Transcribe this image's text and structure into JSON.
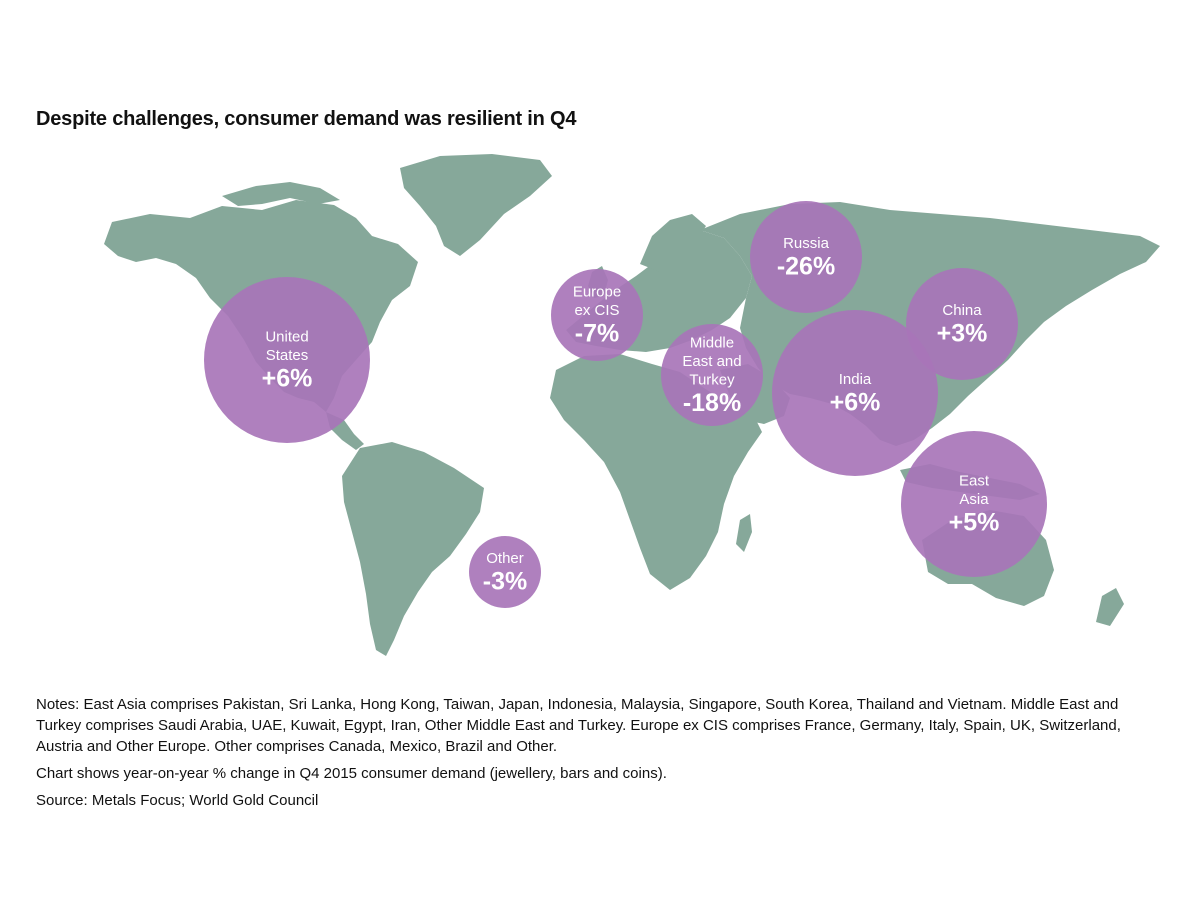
{
  "title": "Despite challenges, consumer demand was resilient in Q4",
  "colors": {
    "land": "#86a89a",
    "bubble": "#a875b8",
    "label": "#ffffff"
  },
  "regions": [
    {
      "id": "united-states",
      "name_lines": [
        "United",
        "States"
      ],
      "value": "+6%"
    },
    {
      "id": "europe-ex-cis",
      "name_lines": [
        "Europe",
        "ex CIS"
      ],
      "value": "-7%"
    },
    {
      "id": "russia",
      "name_lines": [
        "Russia"
      ],
      "value": "-26%"
    },
    {
      "id": "middle-east-turkey",
      "name_lines": [
        "Middle",
        "East and",
        "Turkey"
      ],
      "value": "-18%"
    },
    {
      "id": "china",
      "name_lines": [
        "China"
      ],
      "value": "+3%"
    },
    {
      "id": "india",
      "name_lines": [
        "India"
      ],
      "value": "+6%"
    },
    {
      "id": "east-asia",
      "name_lines": [
        "East",
        "Asia"
      ],
      "value": "+5%"
    },
    {
      "id": "other",
      "name_lines": [
        "Other"
      ],
      "value": "-3%"
    }
  ],
  "notes": {
    "definitions": "Notes: East Asia comprises Pakistan, Sri Lanka, Hong Kong, Taiwan, Japan, Indonesia, Malaysia, Singapore, South Korea, Thailand and Vietnam. Middle East and Turkey comprises Saudi Arabia, UAE, Kuwait, Egypt, Iran, Other Middle East and Turkey. Europe ex CIS comprises France, Germany, Italy, Spain, UK, Switzerland, Austria and Other Europe. Other comprises Canada, Mexico, Brazil and Other.",
    "chart_description": "Chart shows year-on-year % change in Q4 2015 consumer demand (jewellery, bars and coins).",
    "source": "Source: Metals Focus; World Gold Council"
  }
}
